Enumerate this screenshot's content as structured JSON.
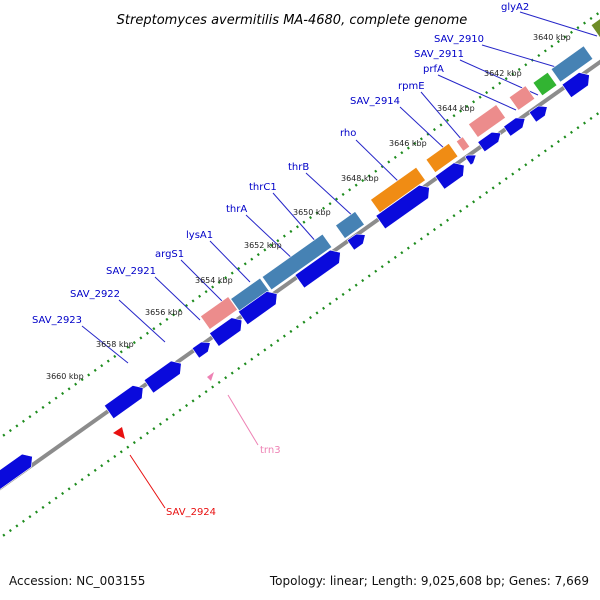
{
  "title": "Streptomyces avermitilis MA-4680, complete genome",
  "footer": {
    "accession": "Accession: NC_003155",
    "summary": "Topology: linear; Length: 9,025,608 bp; Genes: 7,669"
  },
  "colors": {
    "backbone": "#8c8c8c",
    "cds": "#0a0adc",
    "ruler_tick": "#1e8c1e",
    "label_link": "#2626c8",
    "trna": "#ee82b4",
    "rrna_like": "#e81010",
    "pink_gene": "#ec8c8c",
    "steelblue_gene": "#4682b4",
    "orange_gene": "#f08c14",
    "green_gene": "#32b432",
    "olive_gene": "#6e8c28"
  },
  "scale_labels": [
    "3640 kbp",
    "3642 kbp",
    "3644 kbp",
    "3646 kbp",
    "3648 kbp",
    "3650 kbp",
    "3652 kbp",
    "3654 kbp",
    "3656 kbp",
    "3658 kbp",
    "3660 kbp"
  ],
  "gene_labels": [
    {
      "name": "glyA2",
      "color": "blue"
    },
    {
      "name": "SAV_2910",
      "color": "blue"
    },
    {
      "name": "SAV_2911",
      "color": "blue"
    },
    {
      "name": "prfA",
      "color": "blue"
    },
    {
      "name": "rpmE",
      "color": "blue"
    },
    {
      "name": "SAV_2914",
      "color": "blue"
    },
    {
      "name": "rho",
      "color": "blue"
    },
    {
      "name": "thrB",
      "color": "blue"
    },
    {
      "name": "thrC1",
      "color": "blue"
    },
    {
      "name": "thrA",
      "color": "blue"
    },
    {
      "name": "lysA1",
      "color": "blue"
    },
    {
      "name": "argS1",
      "color": "blue"
    },
    {
      "name": "SAV_2921",
      "color": "blue"
    },
    {
      "name": "SAV_2922",
      "color": "blue"
    },
    {
      "name": "SAV_2923",
      "color": "blue"
    },
    {
      "name": "trn3",
      "color": "pink"
    },
    {
      "name": "SAV_2924",
      "color": "red"
    }
  ]
}
